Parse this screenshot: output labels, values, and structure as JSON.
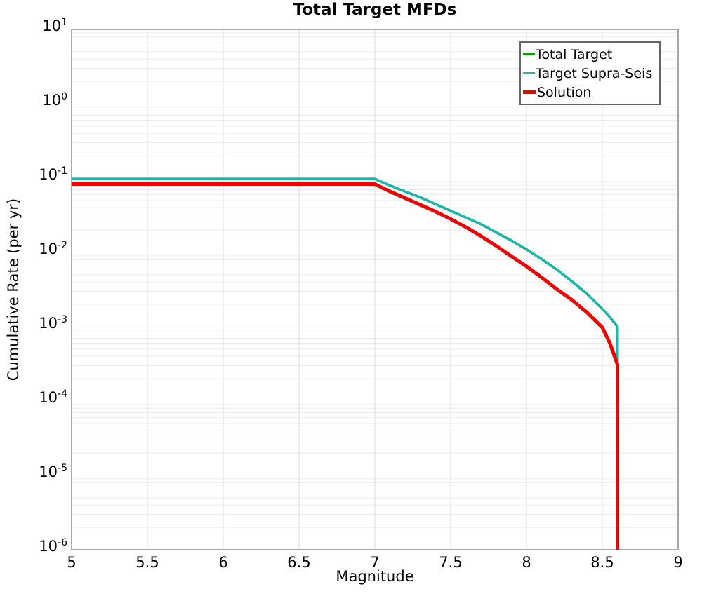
{
  "chart_data": {
    "type": "line",
    "title": "Total Target MFDs",
    "xlabel": "Magnitude",
    "ylabel": "Cumulative Rate (per yr)",
    "x_axis": {
      "min": 5,
      "max": 9,
      "ticks": [
        {
          "v": 5,
          "label": "5"
        },
        {
          "v": 5.5,
          "label": "5.5"
        },
        {
          "v": 6,
          "label": "6"
        },
        {
          "v": 6.5,
          "label": "6.5"
        },
        {
          "v": 7,
          "label": "7"
        },
        {
          "v": 7.5,
          "label": "7.5"
        },
        {
          "v": 8,
          "label": "8"
        },
        {
          "v": 8.5,
          "label": "8.5"
        },
        {
          "v": 9,
          "label": "9"
        }
      ]
    },
    "y_axis": {
      "scale": "log",
      "min": 1e-06,
      "max": 10,
      "ticks": [
        {
          "base": "10",
          "exp": "1"
        },
        {
          "base": "10",
          "exp": "0"
        },
        {
          "base": "10",
          "exp": "-1"
        },
        {
          "base": "10",
          "exp": "-2"
        },
        {
          "base": "10",
          "exp": "-3"
        },
        {
          "base": "10",
          "exp": "-4"
        },
        {
          "base": "10",
          "exp": "-5"
        },
        {
          "base": "10",
          "exp": "-6"
        }
      ]
    },
    "grid": {
      "vertical_lines": [
        5.5,
        6,
        6.5,
        7,
        7.5,
        8,
        8.5
      ],
      "horizontal": "log-minor",
      "h_color": "#ececec",
      "v_color": "#dcdcdc",
      "border_color": "#a8a8a8"
    },
    "legend": {
      "position": "top-right"
    },
    "series": [
      {
        "name": "Total Target",
        "color": "#00a800",
        "stroke_width": 3.5,
        "note": "hidden beneath Target Supra-Seis curve in plot",
        "points": [
          [
            5.0,
            0.0977
          ],
          [
            7.0,
            0.0977
          ],
          [
            7.1,
            0.0794
          ],
          [
            7.2,
            0.0661
          ],
          [
            7.3,
            0.055
          ],
          [
            7.4,
            0.0447
          ],
          [
            7.5,
            0.0363
          ],
          [
            7.6,
            0.0295
          ],
          [
            7.7,
            0.024
          ],
          [
            7.8,
            0.0186
          ],
          [
            7.9,
            0.0145
          ],
          [
            8.0,
            0.011
          ],
          [
            8.1,
            0.00813
          ],
          [
            8.2,
            0.00589
          ],
          [
            8.3,
            0.00407
          ],
          [
            8.4,
            0.00275
          ],
          [
            8.5,
            0.00174
          ],
          [
            8.55,
            0.00135
          ],
          [
            8.6,
            0.001
          ],
          [
            8.6,
            0.00032
          ]
        ]
      },
      {
        "name": "Target Supra-Seis",
        "color": "#1db5ac",
        "stroke_width": 3.5,
        "points": [
          [
            5.0,
            0.0977
          ],
          [
            7.0,
            0.0977
          ],
          [
            7.1,
            0.0794
          ],
          [
            7.2,
            0.0661
          ],
          [
            7.3,
            0.055
          ],
          [
            7.4,
            0.0447
          ],
          [
            7.5,
            0.0363
          ],
          [
            7.6,
            0.0295
          ],
          [
            7.7,
            0.024
          ],
          [
            7.8,
            0.0186
          ],
          [
            7.9,
            0.0145
          ],
          [
            8.0,
            0.011
          ],
          [
            8.1,
            0.00813
          ],
          [
            8.2,
            0.00589
          ],
          [
            8.3,
            0.00407
          ],
          [
            8.4,
            0.00275
          ],
          [
            8.5,
            0.00174
          ],
          [
            8.55,
            0.00135
          ],
          [
            8.6,
            0.001
          ],
          [
            8.6,
            0.00032
          ]
        ]
      },
      {
        "name": "Solution",
        "color": "#ee0000",
        "stroke_width": 5,
        "points": [
          [
            5.0,
            0.0832
          ],
          [
            7.0,
            0.0832
          ],
          [
            7.1,
            0.0661
          ],
          [
            7.2,
            0.0537
          ],
          [
            7.3,
            0.0437
          ],
          [
            7.4,
            0.0355
          ],
          [
            7.5,
            0.0282
          ],
          [
            7.6,
            0.0219
          ],
          [
            7.7,
            0.0166
          ],
          [
            7.8,
            0.0123
          ],
          [
            7.9,
            0.0089
          ],
          [
            8.0,
            0.0065
          ],
          [
            8.1,
            0.0046
          ],
          [
            8.2,
            0.0032
          ],
          [
            8.3,
            0.0023
          ],
          [
            8.4,
            0.00155
          ],
          [
            8.5,
            0.00098
          ],
          [
            8.55,
            0.0006
          ],
          [
            8.6,
            0.00031
          ],
          [
            8.6,
            1e-06
          ]
        ]
      }
    ]
  }
}
